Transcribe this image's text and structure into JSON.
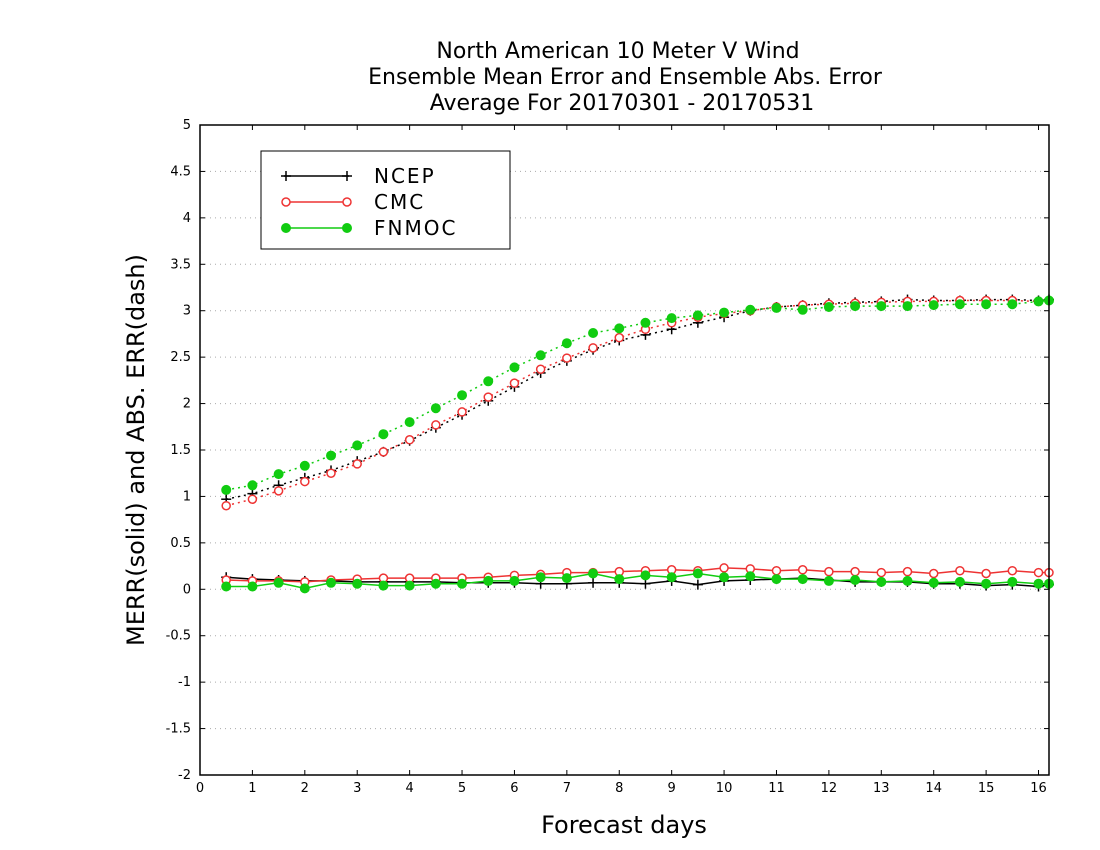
{
  "chart_data": {
    "type": "line",
    "title": [
      "North American 10 Meter V Wind",
      "Ensemble Mean Error and Ensemble Abs. Error",
      "Average For 20170301 - 20170531"
    ],
    "xlabel": "Forecast days",
    "ylabel": "MERR(solid) and ABS. ERR(dash)",
    "xlim": [
      0,
      16.2
    ],
    "ylim": [
      -2,
      5
    ],
    "xticks": [
      0,
      1,
      2,
      3,
      4,
      5,
      6,
      7,
      8,
      9,
      10,
      11,
      12,
      13,
      14,
      15,
      16
    ],
    "yticks": [
      -2,
      -1.5,
      -1,
      -0.5,
      0,
      0.5,
      1,
      1.5,
      2,
      2.5,
      3,
      3.5,
      4,
      4.5,
      5
    ],
    "ytick_labels": [
      "-2",
      "-1.5",
      "-1",
      "-0.5",
      "0",
      "0.5",
      "1",
      "1.5",
      "2",
      "2.5",
      "3",
      "3.5",
      "4",
      "4.5",
      "5"
    ],
    "xtick_labels": [
      "0",
      "1",
      "2",
      "3",
      "4",
      "5",
      "6",
      "7",
      "8",
      "9",
      "10",
      "11",
      "12",
      "13",
      "14",
      "15",
      "16"
    ],
    "grid": true,
    "legend_position": "top-left",
    "x": [
      0.5,
      1,
      1.5,
      2,
      2.5,
      3,
      3.5,
      4,
      4.5,
      5,
      5.5,
      6,
      6.5,
      7,
      7.5,
      8,
      8.5,
      9,
      9.5,
      10,
      10.5,
      11,
      11.5,
      12,
      12.5,
      13,
      13.5,
      14,
      14.5,
      15,
      15.5,
      16,
      16.2
    ],
    "series": [
      {
        "name": "NCEP",
        "color": "#000000",
        "marker": "plus",
        "mean_error": [
          0.13,
          0.11,
          0.1,
          0.09,
          0.09,
          0.08,
          0.08,
          0.08,
          0.08,
          0.07,
          0.07,
          0.07,
          0.06,
          0.06,
          0.07,
          0.07,
          0.06,
          0.09,
          0.05,
          0.09,
          0.1,
          0.11,
          0.12,
          0.1,
          0.08,
          0.08,
          0.08,
          0.06,
          0.06,
          0.04,
          0.05,
          0.03,
          0.05
        ],
        "abs_error": [
          0.97,
          1.03,
          1.12,
          1.2,
          1.28,
          1.38,
          1.48,
          1.6,
          1.74,
          1.88,
          2.03,
          2.18,
          2.33,
          2.46,
          2.58,
          2.68,
          2.74,
          2.8,
          2.87,
          2.93,
          3.0,
          3.04,
          3.06,
          3.08,
          3.09,
          3.1,
          3.12,
          3.11,
          3.11,
          3.12,
          3.12,
          3.11,
          3.12
        ]
      },
      {
        "name": "CMC",
        "color": "#ee3333",
        "marker": "open-circle",
        "mean_error": [
          0.1,
          0.09,
          0.09,
          0.08,
          0.1,
          0.11,
          0.12,
          0.12,
          0.12,
          0.12,
          0.13,
          0.15,
          0.16,
          0.18,
          0.18,
          0.19,
          0.2,
          0.21,
          0.2,
          0.23,
          0.22,
          0.2,
          0.21,
          0.19,
          0.19,
          0.18,
          0.19,
          0.17,
          0.2,
          0.17,
          0.2,
          0.18,
          0.18
        ],
        "abs_error": [
          0.9,
          0.97,
          1.06,
          1.16,
          1.25,
          1.35,
          1.48,
          1.61,
          1.77,
          1.91,
          2.07,
          2.22,
          2.37,
          2.49,
          2.6,
          2.71,
          2.8,
          2.87,
          2.93,
          2.97,
          3.0,
          3.04,
          3.06,
          3.07,
          3.08,
          3.09,
          3.1,
          3.1,
          3.11,
          3.11,
          3.11,
          3.1,
          3.11
        ]
      },
      {
        "name": "FNMOC",
        "color": "#11cc11",
        "marker": "filled-circle",
        "mean_error": [
          0.03,
          0.03,
          0.07,
          0.01,
          0.07,
          0.06,
          0.04,
          0.04,
          0.06,
          0.06,
          0.09,
          0.09,
          0.13,
          0.12,
          0.17,
          0.11,
          0.15,
          0.13,
          0.17,
          0.13,
          0.14,
          0.11,
          0.11,
          0.09,
          0.1,
          0.08,
          0.09,
          0.07,
          0.08,
          0.06,
          0.08,
          0.06,
          0.06
        ],
        "abs_error": [
          1.07,
          1.12,
          1.24,
          1.33,
          1.44,
          1.55,
          1.67,
          1.8,
          1.95,
          2.09,
          2.24,
          2.39,
          2.52,
          2.65,
          2.76,
          2.81,
          2.87,
          2.92,
          2.95,
          2.98,
          3.01,
          3.03,
          3.01,
          3.04,
          3.05,
          3.05,
          3.05,
          3.06,
          3.07,
          3.07,
          3.07,
          3.1,
          3.11
        ]
      }
    ]
  }
}
